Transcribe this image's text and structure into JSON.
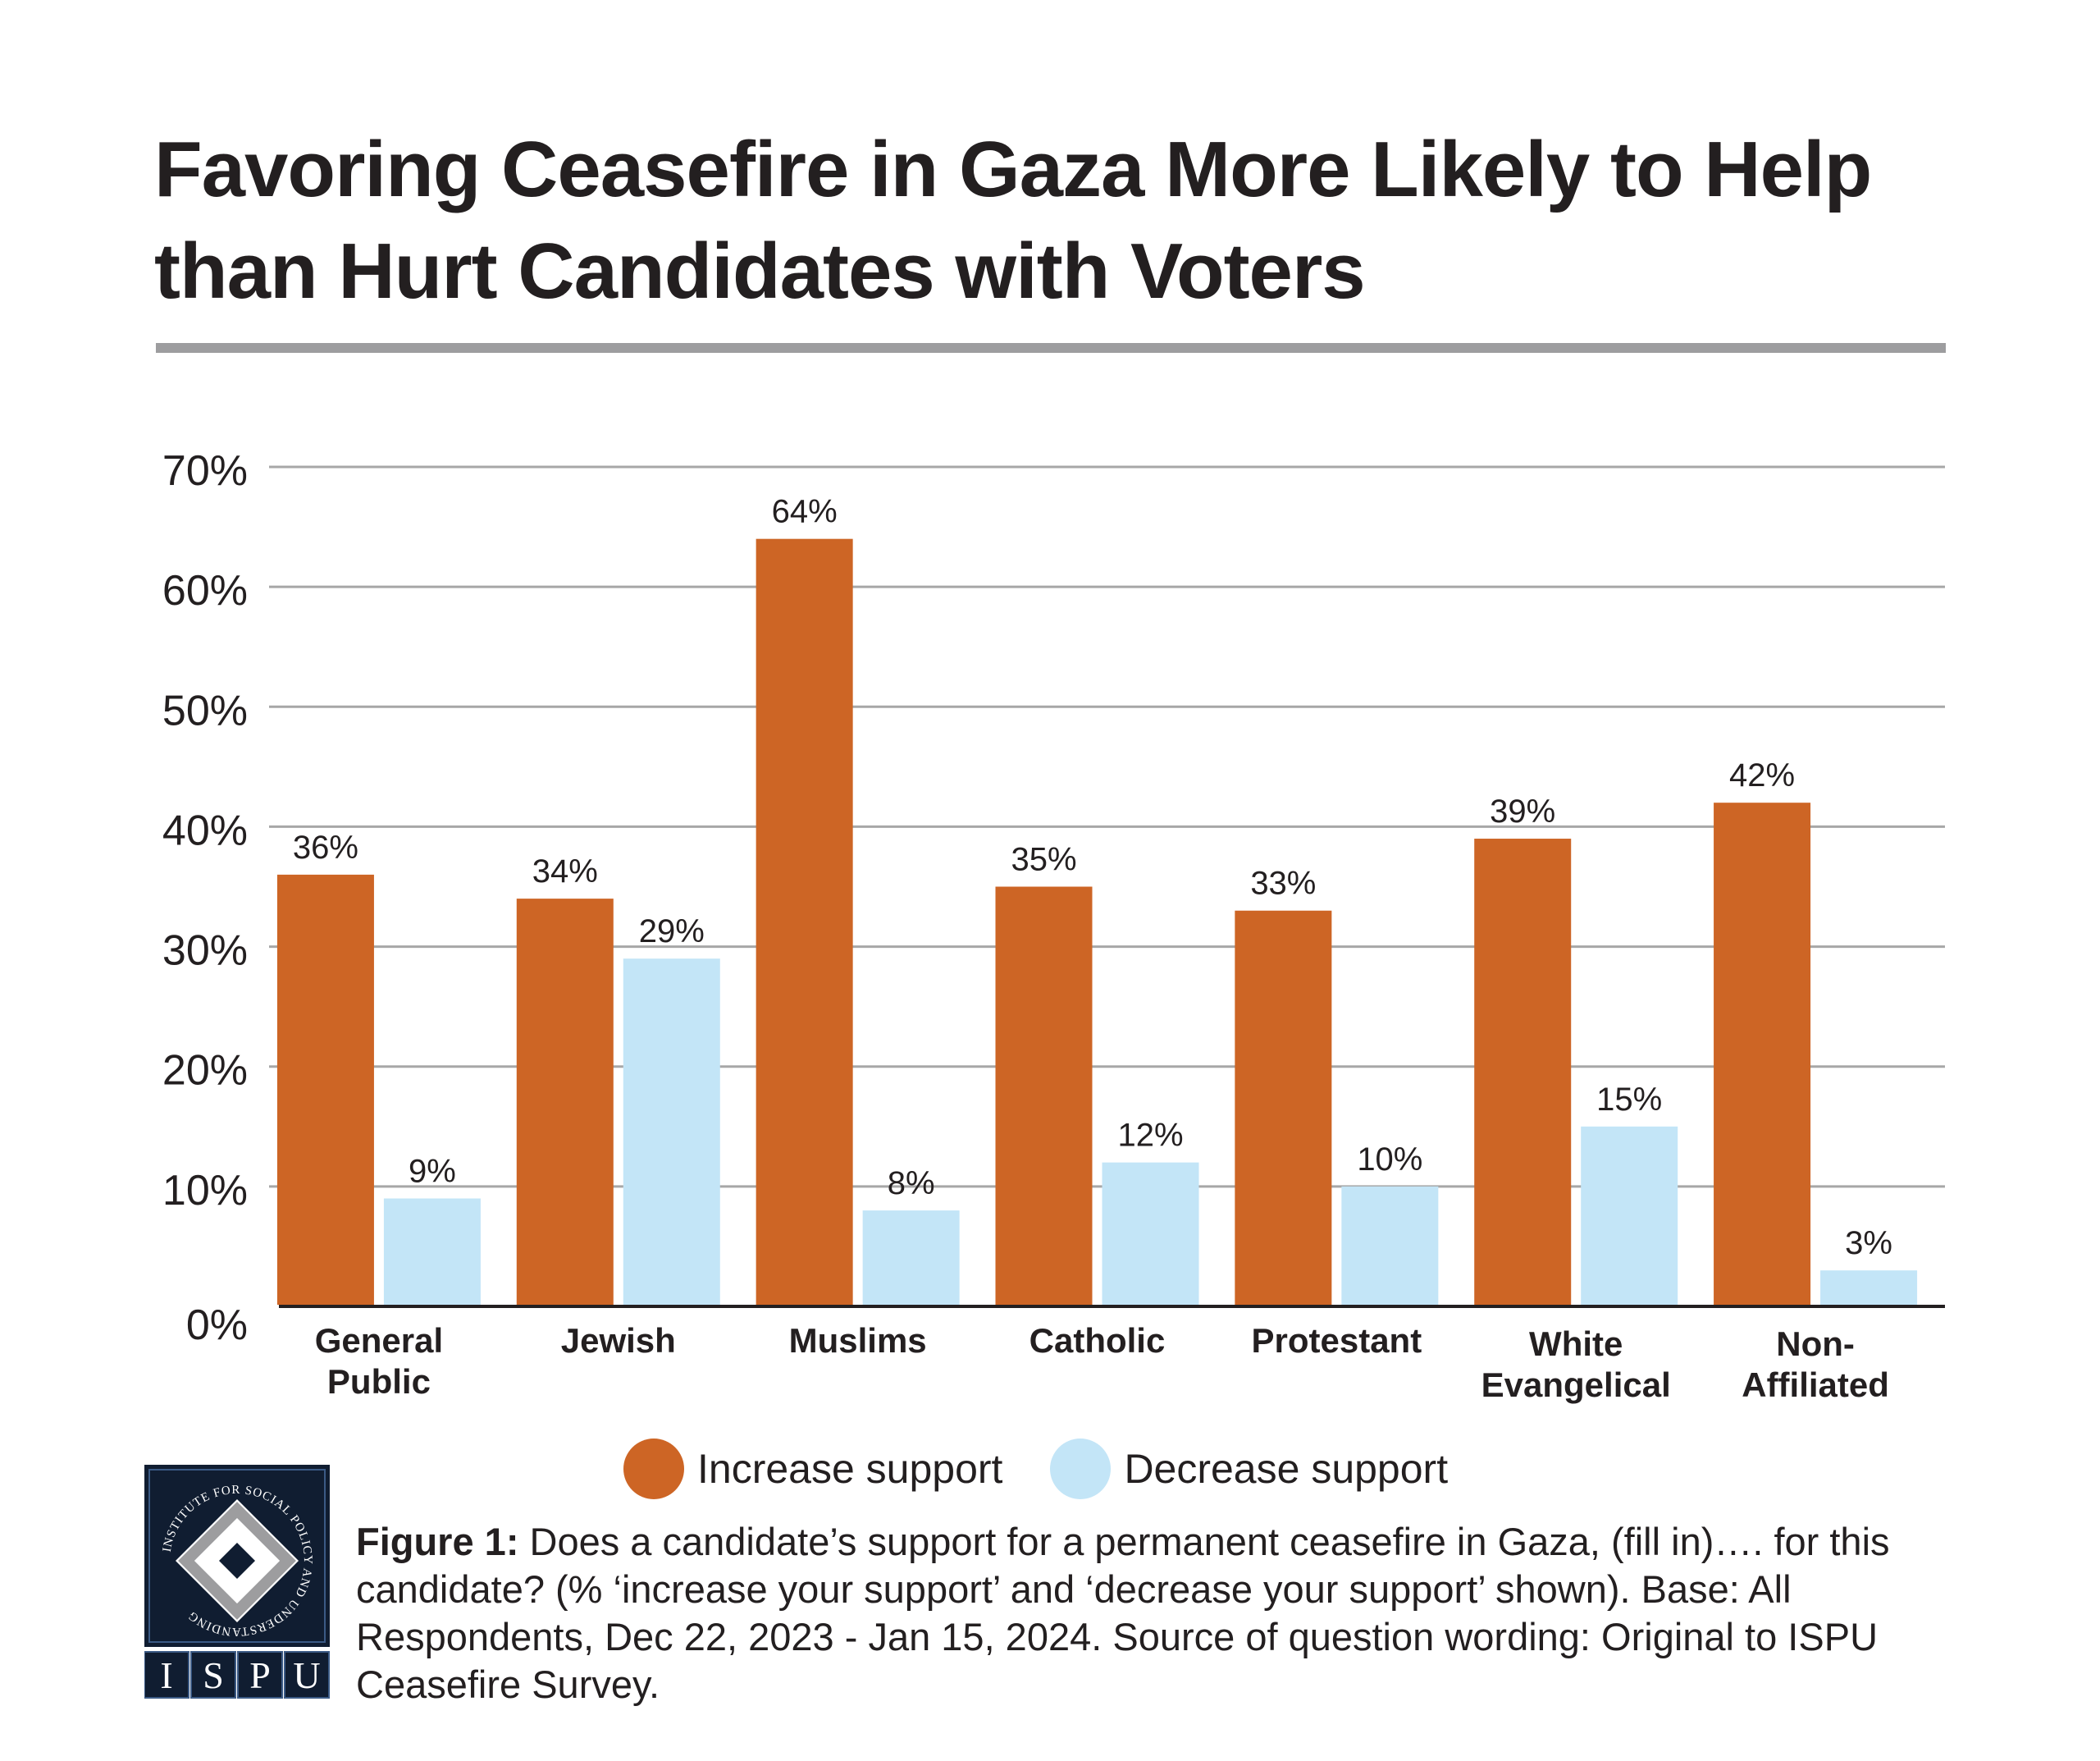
{
  "title_lines": [
    "Favoring Ceasefire in Gaza More Likely to Help",
    "than Hurt Candidates with Voters"
  ],
  "colors": {
    "increase": "#cd6525",
    "decrease": "#c3e5f7",
    "rule": "#9d9d9f",
    "grid": "#a7a7a7",
    "axis": "#231f20",
    "text": "#231f20",
    "logo_bg": "#101d31"
  },
  "chart_data": {
    "type": "bar",
    "title": "Favoring Ceasefire in Gaza More Likely to Help than Hurt Candidates with Voters",
    "xlabel": "",
    "ylabel": "",
    "ylim": [
      0,
      70
    ],
    "yticks": [
      0,
      10,
      20,
      30,
      40,
      50,
      60,
      70
    ],
    "ytick_labels": [
      "0%",
      "10%",
      "20%",
      "30%",
      "40%",
      "50%",
      "60%",
      "70%"
    ],
    "grid": true,
    "legend_position": "bottom",
    "categories": [
      [
        "General",
        "Public"
      ],
      [
        "Jewish"
      ],
      [
        "Muslims"
      ],
      [
        "Catholic"
      ],
      [
        "Protestant"
      ],
      [
        "White",
        "Evangelical"
      ],
      [
        "Non-",
        "Affiliated"
      ]
    ],
    "series": [
      {
        "name": "Increase support",
        "values": [
          36,
          34,
          64,
          35,
          33,
          39,
          42
        ],
        "labels": [
          "36%",
          "34%",
          "64%",
          "35%",
          "33%",
          "39%",
          "42%"
        ]
      },
      {
        "name": "Decrease support",
        "values": [
          9,
          29,
          8,
          12,
          10,
          15,
          3
        ],
        "labels": [
          "9%",
          "29%",
          "8%",
          "12%",
          "10%",
          "15%",
          "3%"
        ]
      }
    ]
  },
  "legend": [
    {
      "label": "Increase support",
      "color_key": "increase"
    },
    {
      "label": "Decrease support",
      "color_key": "decrease"
    }
  ],
  "caption": {
    "lead": "Figure 1:",
    "text": " Does a candidate’s support for a permanent ceasefire in Gaza, (fill in)…. for this candidate? (% ‘increase your support’ and ‘decrease your support’ shown).  Base: All Respondents, Dec 22, 2023 - Jan 15, 2024. Source of question wording: Original to ISPU Ceasefire Survey."
  },
  "logo": {
    "ring_text": "INSTITUTE FOR SOCIAL POLICY AND UNDERSTANDING",
    "letters": [
      "I",
      "S",
      "P",
      "U"
    ]
  }
}
